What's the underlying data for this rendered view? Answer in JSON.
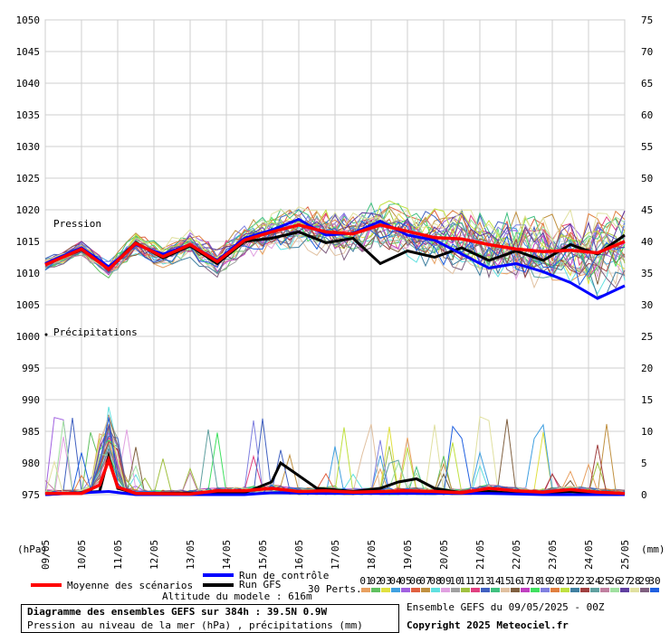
{
  "chart_data": {
    "type": "line",
    "title": "Diagramme des ensembles GEFS sur 384h : 39.5N 0.9W",
    "subtitle": "Pression au niveau de la mer (hPa) , précipitations (mm)",
    "left_unit": "(hPa)",
    "right_unit": "(mm)",
    "pressure_label": "Pression",
    "precip_label": "Précipitations",
    "pressure_axis": {
      "ylim": [
        975,
        1050
      ],
      "ticks": [
        975,
        980,
        985,
        990,
        995,
        1000,
        1005,
        1010,
        1015,
        1020,
        1025,
        1030,
        1035,
        1040,
        1045,
        1050
      ]
    },
    "precip_axis": {
      "ylim": [
        0,
        75
      ],
      "ticks": [
        0,
        5,
        10,
        15,
        20,
        25,
        30,
        35,
        40,
        45,
        50,
        55,
        60,
        65,
        70,
        75
      ]
    },
    "date_labels": [
      "09/05",
      "10/05",
      "11/05",
      "12/05",
      "13/05",
      "14/05",
      "15/05",
      "16/05",
      "17/05",
      "18/05",
      "19/05",
      "20/05",
      "21/05",
      "22/05",
      "23/05",
      "24/05",
      "25/05"
    ],
    "x_hours": {
      "min": 0,
      "max": 384,
      "step": 6
    },
    "grid": true,
    "pressure_series": [
      {
        "name": "Moyenne des scénarios",
        "color": "#ff0000",
        "values": [
          {
            "h": 0,
            "v": 1011.3
          },
          {
            "h": 24,
            "v": 1013.8
          },
          {
            "h": 42,
            "v": 1010.6
          },
          {
            "h": 60,
            "v": 1014.7
          },
          {
            "h": 78,
            "v": 1012.6
          },
          {
            "h": 96,
            "v": 1014.5
          },
          {
            "h": 114,
            "v": 1011.8
          },
          {
            "h": 132,
            "v": 1015.2
          },
          {
            "h": 150,
            "v": 1016.5
          },
          {
            "h": 168,
            "v": 1017.6
          },
          {
            "h": 186,
            "v": 1016.5
          },
          {
            "h": 204,
            "v": 1016.2
          },
          {
            "h": 222,
            "v": 1017.6
          },
          {
            "h": 240,
            "v": 1016.6
          },
          {
            "h": 258,
            "v": 1015.6
          },
          {
            "h": 276,
            "v": 1015.4
          },
          {
            "h": 294,
            "v": 1014.5
          },
          {
            "h": 312,
            "v": 1013.8
          },
          {
            "h": 330,
            "v": 1013.4
          },
          {
            "h": 348,
            "v": 1013.6
          },
          {
            "h": 366,
            "v": 1013.2
          },
          {
            "h": 384,
            "v": 1015.0
          }
        ]
      },
      {
        "name": "Run de contrôle",
        "color": "#0000ff",
        "values": [
          {
            "h": 0,
            "v": 1011.5
          },
          {
            "h": 24,
            "v": 1014.0
          },
          {
            "h": 42,
            "v": 1011.0
          },
          {
            "h": 60,
            "v": 1014.5
          },
          {
            "h": 78,
            "v": 1013.0
          },
          {
            "h": 96,
            "v": 1014.5
          },
          {
            "h": 114,
            "v": 1012.0
          },
          {
            "h": 132,
            "v": 1015.5
          },
          {
            "h": 150,
            "v": 1016.8
          },
          {
            "h": 168,
            "v": 1018.5
          },
          {
            "h": 186,
            "v": 1016.0
          },
          {
            "h": 204,
            "v": 1016.3
          },
          {
            "h": 222,
            "v": 1018.2
          },
          {
            "h": 240,
            "v": 1016.0
          },
          {
            "h": 258,
            "v": 1015.2
          },
          {
            "h": 276,
            "v": 1013.0
          },
          {
            "h": 294,
            "v": 1010.8
          },
          {
            "h": 312,
            "v": 1011.5
          },
          {
            "h": 330,
            "v": 1010.2
          },
          {
            "h": 348,
            "v": 1008.5
          },
          {
            "h": 366,
            "v": 1006.0
          },
          {
            "h": 384,
            "v": 1008.0
          }
        ]
      },
      {
        "name": "Run GFS",
        "color": "#000000",
        "values": [
          {
            "h": 0,
            "v": 1011.4
          },
          {
            "h": 24,
            "v": 1013.7
          },
          {
            "h": 42,
            "v": 1010.8
          },
          {
            "h": 60,
            "v": 1014.8
          },
          {
            "h": 78,
            "v": 1012.4
          },
          {
            "h": 96,
            "v": 1014.3
          },
          {
            "h": 114,
            "v": 1011.5
          },
          {
            "h": 132,
            "v": 1015.0
          },
          {
            "h": 150,
            "v": 1015.5
          },
          {
            "h": 168,
            "v": 1016.5
          },
          {
            "h": 186,
            "v": 1014.8
          },
          {
            "h": 204,
            "v": 1015.5
          },
          {
            "h": 222,
            "v": 1011.5
          },
          {
            "h": 240,
            "v": 1013.5
          },
          {
            "h": 258,
            "v": 1012.5
          },
          {
            "h": 276,
            "v": 1014.0
          },
          {
            "h": 294,
            "v": 1012.0
          },
          {
            "h": 312,
            "v": 1013.5
          },
          {
            "h": 330,
            "v": 1012.0
          },
          {
            "h": 348,
            "v": 1014.5
          },
          {
            "h": 366,
            "v": 1013.0
          },
          {
            "h": 384,
            "v": 1016.0
          }
        ]
      }
    ],
    "precip_series": [
      {
        "name": "Moyenne des scénarios",
        "color": "#ff0000",
        "values": [
          {
            "h": 0,
            "v": 0.2
          },
          {
            "h": 24,
            "v": 0.2
          },
          {
            "h": 36,
            "v": 1.5
          },
          {
            "h": 42,
            "v": 5.5
          },
          {
            "h": 48,
            "v": 1.2
          },
          {
            "h": 60,
            "v": 0.2
          },
          {
            "h": 96,
            "v": 0.1
          },
          {
            "h": 114,
            "v": 0.6
          },
          {
            "h": 132,
            "v": 0.6
          },
          {
            "h": 150,
            "v": 1.0
          },
          {
            "h": 168,
            "v": 0.5
          },
          {
            "h": 186,
            "v": 0.6
          },
          {
            "h": 204,
            "v": 0.4
          },
          {
            "h": 222,
            "v": 0.5
          },
          {
            "h": 240,
            "v": 0.6
          },
          {
            "h": 258,
            "v": 0.5
          },
          {
            "h": 276,
            "v": 0.3
          },
          {
            "h": 294,
            "v": 1.0
          },
          {
            "h": 312,
            "v": 0.6
          },
          {
            "h": 330,
            "v": 0.4
          },
          {
            "h": 348,
            "v": 0.8
          },
          {
            "h": 366,
            "v": 0.4
          },
          {
            "h": 384,
            "v": 0.2
          }
        ]
      },
      {
        "name": "Run de contrôle",
        "color": "#0000ff",
        "values": [
          {
            "h": 0,
            "v": 0
          },
          {
            "h": 42,
            "v": 0.5
          },
          {
            "h": 60,
            "v": 0
          },
          {
            "h": 132,
            "v": 0
          },
          {
            "h": 150,
            "v": 0.3
          },
          {
            "h": 186,
            "v": 0.2
          },
          {
            "h": 222,
            "v": 0.2
          },
          {
            "h": 258,
            "v": 0.2
          },
          {
            "h": 294,
            "v": 0.2
          },
          {
            "h": 330,
            "v": 0
          },
          {
            "h": 384,
            "v": 0
          }
        ]
      },
      {
        "name": "Run GFS",
        "color": "#000000",
        "values": [
          {
            "h": 0,
            "v": 0
          },
          {
            "h": 36,
            "v": 0.5
          },
          {
            "h": 42,
            "v": 6.0
          },
          {
            "h": 48,
            "v": 1.0
          },
          {
            "h": 60,
            "v": 0.2
          },
          {
            "h": 132,
            "v": 0.3
          },
          {
            "h": 150,
            "v": 2.0
          },
          {
            "h": 156,
            "v": 5.0
          },
          {
            "h": 168,
            "v": 3.0
          },
          {
            "h": 180,
            "v": 1.0
          },
          {
            "h": 204,
            "v": 0.5
          },
          {
            "h": 222,
            "v": 1.0
          },
          {
            "h": 234,
            "v": 2.0
          },
          {
            "h": 246,
            "v": 2.5
          },
          {
            "h": 258,
            "v": 1.0
          },
          {
            "h": 276,
            "v": 0.3
          },
          {
            "h": 294,
            "v": 0.5
          },
          {
            "h": 312,
            "v": 0.2
          },
          {
            "h": 348,
            "v": 0.5
          },
          {
            "h": 384,
            "v": 0
          }
        ]
      }
    ],
    "member_colors": [
      "#e8a060",
      "#60c060",
      "#e0e040",
      "#40a0e0",
      "#a060e0",
      "#e06040",
      "#c09040",
      "#60e0e0",
      "#e0a0e0",
      "#a0a0a0",
      "#a0c040",
      "#e04080",
      "#4060c0",
      "#40c080",
      "#e0c0a0",
      "#806040",
      "#c040c0",
      "#40e060",
      "#8080e0",
      "#e08040",
      "#c0e040",
      "#4080a0",
      "#a04040",
      "#60a0a0",
      "#c080a0",
      "#a0e0a0",
      "#6040a0",
      "#e0e0a0",
      "#806080",
      "#2060e0"
    ],
    "legend": [
      {
        "label": "Moyenne des scénarios",
        "color": "#ff0000"
      },
      {
        "label": "Run de contrôle",
        "color": "#0000ff"
      },
      {
        "label": "Run GFS",
        "color": "#000000"
      }
    ],
    "perts_label": "30 Perts.",
    "perts_codes": [
      "01",
      "02",
      "03",
      "04",
      "05",
      "06",
      "07",
      "08",
      "09",
      "10",
      "11",
      "12",
      "13",
      "14",
      "15",
      "16",
      "17",
      "18",
      "19",
      "20",
      "21",
      "22",
      "23",
      "24",
      "25",
      "26",
      "27",
      "28",
      "29",
      "30"
    ],
    "altitude": "Altitude du modele : 616m",
    "run_info": "Ensemble GEFS du 09/05/2025 - 00Z",
    "copyright": "Copyright 2025 Meteociel.fr"
  }
}
